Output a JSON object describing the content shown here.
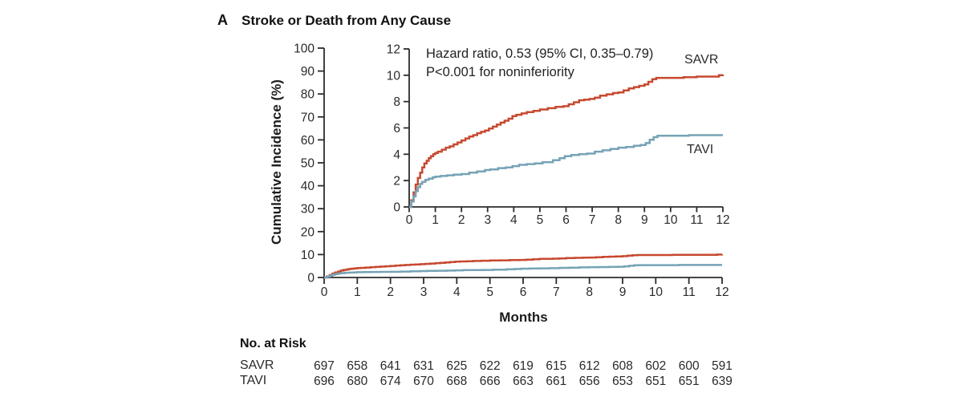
{
  "panel": {
    "label": "A",
    "title": "Stroke or Death from Any Cause"
  },
  "annotation": {
    "line1": "Hazard ratio, 0.53 (95% CI, 0.35–0.79)",
    "line2": "P<0.001 for noninferiority"
  },
  "colors": {
    "savr": "#c64a30",
    "tavi": "#76a3b6",
    "axis": "#2b2b2b"
  },
  "chart_data": {
    "type": "line",
    "step": true,
    "title": "Stroke or Death from Any Cause",
    "xlabel": "Months",
    "ylabel": "Cumulative Incidence (%)",
    "x_ticks": [
      0,
      1,
      2,
      3,
      4,
      5,
      6,
      7,
      8,
      9,
      10,
      11,
      12
    ],
    "main_axis": {
      "ylim": [
        0,
        100
      ],
      "y_ticks": [
        0,
        10,
        20,
        30,
        40,
        50,
        60,
        70,
        80,
        90,
        100
      ]
    },
    "inset_axis": {
      "ylim": [
        0,
        12
      ],
      "y_ticks": [
        0,
        2,
        4,
        6,
        8,
        10,
        12
      ]
    },
    "legend_position": "inline-right",
    "grid": false,
    "series": [
      {
        "name": "SAVR",
        "color": "#c64a30",
        "points": [
          [
            0,
            0
          ],
          [
            0.08,
            0.5
          ],
          [
            0.17,
            1.1
          ],
          [
            0.25,
            1.7
          ],
          [
            0.33,
            2.2
          ],
          [
            0.42,
            2.6
          ],
          [
            0.5,
            3.0
          ],
          [
            0.58,
            3.3
          ],
          [
            0.67,
            3.5
          ],
          [
            0.75,
            3.7
          ],
          [
            0.83,
            3.85
          ],
          [
            0.92,
            4.0
          ],
          [
            1.0,
            4.1
          ],
          [
            1.1,
            4.2
          ],
          [
            1.25,
            4.35
          ],
          [
            1.4,
            4.5
          ],
          [
            1.55,
            4.6
          ],
          [
            1.7,
            4.75
          ],
          [
            1.85,
            4.9
          ],
          [
            2.0,
            5.05
          ],
          [
            2.15,
            5.2
          ],
          [
            2.3,
            5.35
          ],
          [
            2.45,
            5.45
          ],
          [
            2.6,
            5.6
          ],
          [
            2.75,
            5.7
          ],
          [
            2.9,
            5.8
          ],
          [
            3.05,
            5.95
          ],
          [
            3.2,
            6.1
          ],
          [
            3.35,
            6.25
          ],
          [
            3.5,
            6.4
          ],
          [
            3.65,
            6.55
          ],
          [
            3.8,
            6.7
          ],
          [
            3.95,
            6.9
          ],
          [
            4.1,
            7.0
          ],
          [
            4.3,
            7.1
          ],
          [
            4.5,
            7.2
          ],
          [
            4.75,
            7.3
          ],
          [
            5.0,
            7.4
          ],
          [
            5.3,
            7.5
          ],
          [
            5.6,
            7.6
          ],
          [
            5.9,
            7.65
          ],
          [
            6.1,
            7.8
          ],
          [
            6.3,
            7.95
          ],
          [
            6.5,
            8.1
          ],
          [
            6.7,
            8.15
          ],
          [
            6.9,
            8.2
          ],
          [
            7.1,
            8.3
          ],
          [
            7.3,
            8.45
          ],
          [
            7.55,
            8.55
          ],
          [
            7.8,
            8.65
          ],
          [
            8.0,
            8.7
          ],
          [
            8.2,
            8.85
          ],
          [
            8.4,
            9.0
          ],
          [
            8.6,
            9.1
          ],
          [
            8.8,
            9.2
          ],
          [
            9.0,
            9.3
          ],
          [
            9.15,
            9.5
          ],
          [
            9.3,
            9.7
          ],
          [
            9.45,
            9.8
          ],
          [
            10.0,
            9.8
          ],
          [
            10.5,
            9.85
          ],
          [
            11.0,
            9.9
          ],
          [
            11.5,
            9.9
          ],
          [
            11.85,
            10.0
          ],
          [
            12,
            10.05
          ]
        ]
      },
      {
        "name": "TAVI",
        "color": "#76a3b6",
        "points": [
          [
            0,
            0
          ],
          [
            0.08,
            0.4
          ],
          [
            0.17,
            0.8
          ],
          [
            0.25,
            1.2
          ],
          [
            0.33,
            1.5
          ],
          [
            0.42,
            1.75
          ],
          [
            0.5,
            1.9
          ],
          [
            0.62,
            2.05
          ],
          [
            0.75,
            2.15
          ],
          [
            0.9,
            2.25
          ],
          [
            1.0,
            2.3
          ],
          [
            1.2,
            2.35
          ],
          [
            1.45,
            2.4
          ],
          [
            1.7,
            2.45
          ],
          [
            2.0,
            2.5
          ],
          [
            2.3,
            2.6
          ],
          [
            2.6,
            2.7
          ],
          [
            2.9,
            2.8
          ],
          [
            3.1,
            2.85
          ],
          [
            3.4,
            2.95
          ],
          [
            3.7,
            3.0
          ],
          [
            3.95,
            3.1
          ],
          [
            4.2,
            3.2
          ],
          [
            4.5,
            3.25
          ],
          [
            4.8,
            3.3
          ],
          [
            5.1,
            3.4
          ],
          [
            5.5,
            3.55
          ],
          [
            5.75,
            3.7
          ],
          [
            5.95,
            3.85
          ],
          [
            6.2,
            3.95
          ],
          [
            6.5,
            4.0
          ],
          [
            6.8,
            4.05
          ],
          [
            7.1,
            4.2
          ],
          [
            7.4,
            4.3
          ],
          [
            7.7,
            4.4
          ],
          [
            8.0,
            4.5
          ],
          [
            8.3,
            4.55
          ],
          [
            8.6,
            4.65
          ],
          [
            8.85,
            4.7
          ],
          [
            9.05,
            4.85
          ],
          [
            9.2,
            5.1
          ],
          [
            9.35,
            5.3
          ],
          [
            9.5,
            5.4
          ],
          [
            10.0,
            5.4
          ],
          [
            10.7,
            5.45
          ],
          [
            11.5,
            5.45
          ],
          [
            12,
            5.45
          ]
        ]
      }
    ]
  },
  "risk_table": {
    "heading": "No. at Risk",
    "rows": [
      {
        "label": "SAVR",
        "values": [
          697,
          658,
          641,
          631,
          625,
          622,
          619,
          615,
          612,
          608,
          602,
          600,
          591
        ]
      },
      {
        "label": "TAVI",
        "values": [
          696,
          680,
          674,
          670,
          668,
          666,
          663,
          661,
          656,
          653,
          651,
          651,
          639
        ]
      }
    ]
  }
}
